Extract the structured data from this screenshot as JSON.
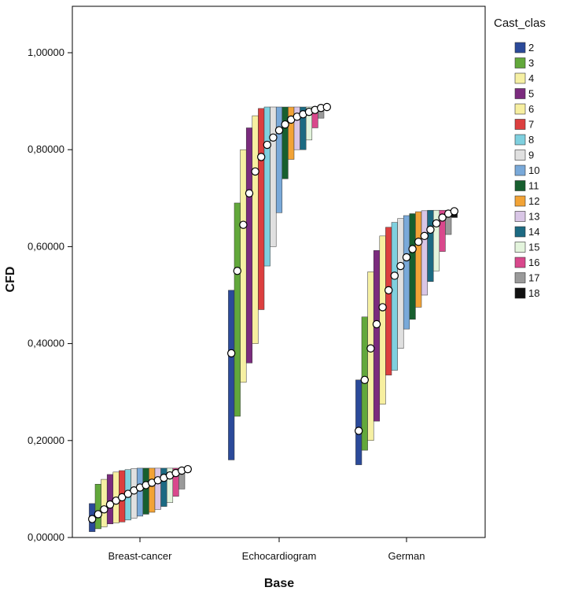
{
  "chart_data": {
    "type": "bar",
    "xlabel": "Base",
    "ylabel": "CFD",
    "ylim": [
      0,
      1.1
    ],
    "y_ticks": [
      "0,00000",
      "0,20000",
      "0,40000",
      "0,60000",
      "0,80000",
      "1,00000"
    ],
    "y_tick_values": [
      0,
      0.2,
      0.4,
      0.6,
      0.8,
      1.0
    ],
    "categories": [
      "Breast-cancer",
      "Echocardiogram",
      "German"
    ],
    "legend": {
      "title": "Cast_clas",
      "position": "right",
      "entries": [
        "2",
        "3",
        "4",
        "5",
        "6",
        "7",
        "8",
        "9",
        "10",
        "11",
        "12",
        "13",
        "14",
        "15",
        "16",
        "17",
        "18"
      ]
    },
    "series_colors": [
      "#2b4a9a",
      "#62a83b",
      "#f6f0a3",
      "#7b2b7e",
      "#f7efa0",
      "#dc3f3f",
      "#7fd0df",
      "#e0e0e0",
      "#79a9d9",
      "#175f2f",
      "#f2a336",
      "#d9c6e6",
      "#1c6a82",
      "#e3f4dc",
      "#d9488c",
      "#9a9a9a",
      "#111111"
    ],
    "groups": [
      {
        "category": "Breast-cancer",
        "bars": [
          {
            "cls": "2",
            "low": 0.012,
            "high": 0.07,
            "mean": 0.038
          },
          {
            "cls": "3",
            "low": 0.018,
            "high": 0.11,
            "mean": 0.048
          },
          {
            "cls": "4",
            "low": 0.022,
            "high": 0.12,
            "mean": 0.058
          },
          {
            "cls": "5",
            "low": 0.028,
            "high": 0.13,
            "mean": 0.068
          },
          {
            "cls": "6",
            "low": 0.03,
            "high": 0.135,
            "mean": 0.076
          },
          {
            "cls": "7",
            "low": 0.032,
            "high": 0.138,
            "mean": 0.083
          },
          {
            "cls": "8",
            "low": 0.036,
            "high": 0.14,
            "mean": 0.09
          },
          {
            "cls": "9",
            "low": 0.04,
            "high": 0.142,
            "mean": 0.097
          },
          {
            "cls": "10",
            "low": 0.044,
            "high": 0.143,
            "mean": 0.103
          },
          {
            "cls": "11",
            "low": 0.048,
            "high": 0.143,
            "mean": 0.108
          },
          {
            "cls": "12",
            "low": 0.052,
            "high": 0.143,
            "mean": 0.113
          },
          {
            "cls": "13",
            "low": 0.058,
            "high": 0.143,
            "mean": 0.118
          },
          {
            "cls": "14",
            "low": 0.064,
            "high": 0.143,
            "mean": 0.123
          },
          {
            "cls": "15",
            "low": 0.072,
            "high": 0.143,
            "mean": 0.128
          },
          {
            "cls": "16",
            "low": 0.085,
            "high": 0.143,
            "mean": 0.133
          },
          {
            "cls": "17",
            "low": 0.1,
            "high": 0.143,
            "mean": 0.138
          },
          {
            "cls": "18",
            "low": 0.135,
            "high": 0.143,
            "mean": 0.141
          }
        ]
      },
      {
        "category": "Echocardiogram",
        "bars": [
          {
            "cls": "2",
            "low": 0.16,
            "high": 0.51,
            "mean": 0.38
          },
          {
            "cls": "3",
            "low": 0.25,
            "high": 0.69,
            "mean": 0.55
          },
          {
            "cls": "4",
            "low": 0.32,
            "high": 0.8,
            "mean": 0.645
          },
          {
            "cls": "5",
            "low": 0.36,
            "high": 0.845,
            "mean": 0.71
          },
          {
            "cls": "6",
            "low": 0.4,
            "high": 0.87,
            "mean": 0.755
          },
          {
            "cls": "7",
            "low": 0.47,
            "high": 0.885,
            "mean": 0.785
          },
          {
            "cls": "8",
            "low": 0.56,
            "high": 0.888,
            "mean": 0.81
          },
          {
            "cls": "9",
            "low": 0.6,
            "high": 0.888,
            "mean": 0.825
          },
          {
            "cls": "10",
            "low": 0.67,
            "high": 0.888,
            "mean": 0.84
          },
          {
            "cls": "11",
            "low": 0.74,
            "high": 0.888,
            "mean": 0.852
          },
          {
            "cls": "12",
            "low": 0.78,
            "high": 0.888,
            "mean": 0.862
          },
          {
            "cls": "13",
            "low": 0.8,
            "high": 0.888,
            "mean": 0.868
          },
          {
            "cls": "14",
            "low": 0.8,
            "high": 0.888,
            "mean": 0.873
          },
          {
            "cls": "15",
            "low": 0.82,
            "high": 0.888,
            "mean": 0.878
          },
          {
            "cls": "16",
            "low": 0.845,
            "high": 0.888,
            "mean": 0.882
          },
          {
            "cls": "17",
            "low": 0.865,
            "high": 0.888,
            "mean": 0.886
          },
          {
            "cls": "18",
            "low": 0.885,
            "high": 0.89,
            "mean": 0.888
          }
        ]
      },
      {
        "category": "German",
        "bars": [
          {
            "cls": "2",
            "low": 0.15,
            "high": 0.325,
            "mean": 0.22
          },
          {
            "cls": "3",
            "low": 0.18,
            "high": 0.455,
            "mean": 0.325
          },
          {
            "cls": "4",
            "low": 0.2,
            "high": 0.548,
            "mean": 0.39
          },
          {
            "cls": "5",
            "low": 0.24,
            "high": 0.592,
            "mean": 0.44
          },
          {
            "cls": "6",
            "low": 0.275,
            "high": 0.622,
            "mean": 0.475
          },
          {
            "cls": "7",
            "low": 0.335,
            "high": 0.64,
            "mean": 0.51
          },
          {
            "cls": "8",
            "low": 0.345,
            "high": 0.65,
            "mean": 0.54
          },
          {
            "cls": "9",
            "low": 0.39,
            "high": 0.658,
            "mean": 0.56
          },
          {
            "cls": "10",
            "low": 0.43,
            "high": 0.664,
            "mean": 0.578
          },
          {
            "cls": "11",
            "low": 0.45,
            "high": 0.668,
            "mean": 0.595
          },
          {
            "cls": "12",
            "low": 0.475,
            "high": 0.672,
            "mean": 0.61
          },
          {
            "cls": "13",
            "low": 0.5,
            "high": 0.674,
            "mean": 0.622
          },
          {
            "cls": "14",
            "low": 0.528,
            "high": 0.675,
            "mean": 0.635
          },
          {
            "cls": "15",
            "low": 0.55,
            "high": 0.675,
            "mean": 0.648
          },
          {
            "cls": "16",
            "low": 0.59,
            "high": 0.675,
            "mean": 0.66
          },
          {
            "cls": "17",
            "low": 0.625,
            "high": 0.675,
            "mean": 0.668
          },
          {
            "cls": "18",
            "low": 0.66,
            "high": 0.676,
            "mean": 0.673
          }
        ]
      }
    ]
  }
}
